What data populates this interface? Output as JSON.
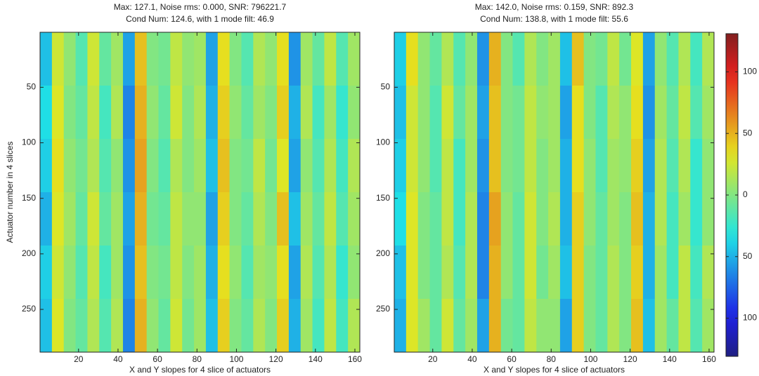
{
  "chart_data": [
    {
      "type": "heatmap",
      "title": [
        "Max: 127.1, Noise rms: 0.000, SNR: 796221.7",
        "Cond Num: 124.6, with 1 mode filt: 46.9"
      ],
      "xlabel": "X and Y slopes for 4 slice of actuators",
      "ylabel": "Actuator number in 4 slices",
      "colormap": "jet",
      "clim": [
        -131,
        131
      ],
      "xlim": [
        0.5,
        162.5
      ],
      "ylim": [
        0.5,
        288.5
      ],
      "y_reversed": true,
      "xticks": [
        20,
        40,
        60,
        80,
        100,
        120,
        140,
        160
      ],
      "yticks": [
        50,
        100,
        150,
        200,
        250
      ],
      "x": [
        3.5,
        9.5,
        15.5,
        21.5,
        27.5,
        33.5,
        39.5,
        45.5,
        51.5,
        57.5,
        63.5,
        69.5,
        75.5,
        81.5,
        87.5,
        93.5,
        99.5,
        105.5,
        111.5,
        117.5,
        123.5,
        129.5,
        135.5,
        141.5,
        147.5,
        153.5,
        159.5
      ],
      "y": [
        24.5,
        72.5,
        120.5,
        168.5,
        216.5,
        264.5
      ],
      "z": [
        [
          -45,
          25,
          5,
          -15,
          25,
          -10,
          10,
          -55,
          45,
          0,
          -5,
          20,
          5,
          10,
          -55,
          35,
          0,
          -15,
          15,
          5,
          35,
          -60,
          10,
          -10,
          20,
          -15,
          10
        ],
        [
          -35,
          30,
          0,
          -10,
          20,
          -20,
          15,
          -65,
          50,
          5,
          -10,
          25,
          0,
          15,
          -50,
          40,
          5,
          -10,
          10,
          0,
          40,
          -50,
          15,
          -20,
          10,
          -25,
          5
        ],
        [
          -40,
          35,
          5,
          -5,
          15,
          -15,
          5,
          -60,
          55,
          0,
          -15,
          15,
          0,
          10,
          -45,
          45,
          0,
          -5,
          20,
          -5,
          30,
          -55,
          5,
          -15,
          15,
          -20,
          15
        ],
        [
          -50,
          30,
          10,
          -10,
          25,
          -10,
          10,
          -55,
          50,
          -5,
          -10,
          20,
          5,
          5,
          -55,
          40,
          0,
          -10,
          15,
          0,
          45,
          -45,
          10,
          -10,
          20,
          -15,
          10
        ],
        [
          -40,
          25,
          5,
          -15,
          20,
          -20,
          10,
          -60,
          45,
          0,
          -5,
          20,
          0,
          10,
          -50,
          35,
          5,
          -15,
          10,
          5,
          35,
          -55,
          15,
          -15,
          15,
          -25,
          5
        ],
        [
          -45,
          30,
          0,
          -10,
          15,
          -15,
          15,
          -65,
          50,
          5,
          -10,
          25,
          -5,
          10,
          -45,
          40,
          0,
          -10,
          15,
          0,
          40,
          -50,
          10,
          -20,
          20,
          -20,
          15
        ]
      ]
    },
    {
      "type": "heatmap",
      "title": [
        "Max: 142.0, Noise rms: 0.159, SNR: 892.3",
        "Cond Num: 138.8, with 1 mode filt: 55.6"
      ],
      "xlabel": "X and Y slopes for 4 slice of actuators",
      "colormap": "jet",
      "clim": [
        -131,
        131
      ],
      "xlim": [
        0.5,
        162.5
      ],
      "ylim": [
        0.5,
        288.5
      ],
      "y_reversed": true,
      "xticks": [
        20,
        40,
        60,
        80,
        100,
        120,
        140,
        160
      ],
      "yticks": [
        50,
        100,
        150,
        200,
        250
      ],
      "x": [
        3.5,
        9.5,
        15.5,
        21.5,
        27.5,
        33.5,
        39.5,
        45.5,
        51.5,
        57.5,
        63.5,
        69.5,
        75.5,
        81.5,
        87.5,
        93.5,
        99.5,
        105.5,
        111.5,
        117.5,
        123.5,
        129.5,
        135.5,
        141.5,
        147.5,
        153.5,
        159.5
      ],
      "y": [
        24.5,
        72.5,
        120.5,
        168.5,
        216.5,
        264.5
      ],
      "z": [
        [
          -40,
          35,
          5,
          -10,
          15,
          -15,
          5,
          -60,
          50,
          0,
          -15,
          15,
          0,
          10,
          -45,
          45,
          0,
          -5,
          20,
          -5,
          30,
          -55,
          5,
          -15,
          15,
          -20,
          15
        ],
        [
          -45,
          25,
          5,
          -15,
          25,
          -10,
          10,
          -55,
          45,
          0,
          -5,
          20,
          5,
          10,
          -55,
          35,
          0,
          -15,
          15,
          5,
          35,
          -60,
          10,
          -10,
          20,
          -15,
          10
        ],
        [
          -40,
          25,
          5,
          -15,
          20,
          -20,
          10,
          -60,
          45,
          0,
          -5,
          20,
          0,
          10,
          -50,
          35,
          5,
          -15,
          10,
          5,
          40,
          -55,
          15,
          -15,
          15,
          -25,
          5
        ],
        [
          -35,
          30,
          0,
          -10,
          20,
          -20,
          15,
          -65,
          55,
          5,
          -10,
          25,
          0,
          15,
          -50,
          40,
          5,
          -10,
          10,
          0,
          45,
          -50,
          15,
          -20,
          10,
          -25,
          5
        ],
        [
          -45,
          30,
          0,
          -10,
          15,
          -15,
          15,
          -65,
          50,
          5,
          -10,
          25,
          -5,
          10,
          -45,
          40,
          0,
          -10,
          15,
          0,
          40,
          -50,
          10,
          -20,
          20,
          -20,
          15
        ],
        [
          -50,
          30,
          10,
          -10,
          25,
          -10,
          10,
          -55,
          50,
          -5,
          -10,
          20,
          5,
          5,
          -55,
          40,
          0,
          -10,
          15,
          0,
          45,
          -45,
          10,
          -10,
          20,
          -15,
          10
        ]
      ],
      "colorbar": {
        "ticks": [
          100,
          50,
          0,
          {
            "value": -50,
            "label": "50"
          },
          {
            "value": -100,
            "label": "100"
          }
        ]
      }
    }
  ]
}
